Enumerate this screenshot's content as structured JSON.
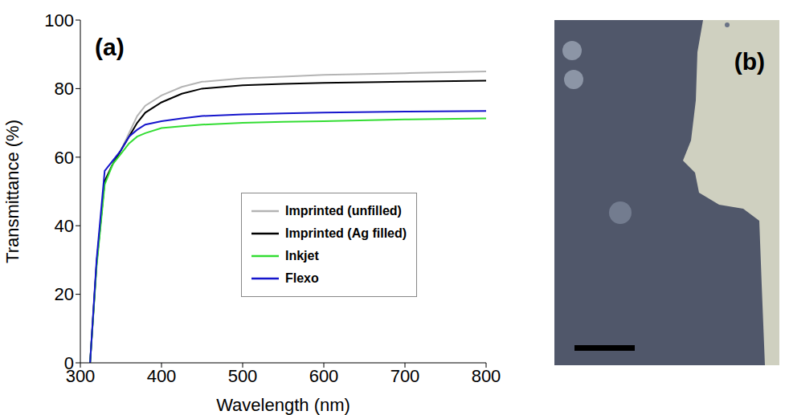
{
  "chart_data": {
    "type": "line",
    "annotations": [
      "(a)"
    ],
    "xlabel": "Wavelength (nm)",
    "ylabel": "Transmittance (%)",
    "x": [
      312,
      320,
      330,
      340,
      350,
      360,
      370,
      380,
      400,
      425,
      450,
      500,
      550,
      600,
      700,
      800
    ],
    "xlim": [
      300,
      800
    ],
    "xticks": [
      300,
      400,
      500,
      600,
      700,
      800
    ],
    "ylim": [
      0,
      100
    ],
    "yticks": [
      0,
      20,
      40,
      60,
      80,
      100
    ],
    "grid": false,
    "legend": "right",
    "series": [
      {
        "name": "Imprinted (unfilled)",
        "color": "#b4b4b4",
        "line_style": "solid",
        "values": [
          0,
          29,
          53,
          58,
          62,
          67,
          72,
          75,
          78,
          80.5,
          82,
          83,
          83.5,
          84,
          84.5,
          85
        ]
      },
      {
        "name": "Imprinted (Ag filled)",
        "color": "#000000",
        "line_style": "solid",
        "values": [
          0,
          29,
          53,
          58,
          62,
          66,
          70,
          73,
          76,
          78.5,
          80,
          81,
          81.4,
          81.7,
          82,
          82.3
        ]
      },
      {
        "name": "Inkjet",
        "color": "#33dd33",
        "line_style": "solid",
        "values": [
          0,
          28,
          52,
          58,
          61,
          64,
          66,
          67,
          68.5,
          69,
          69.5,
          70,
          70.3,
          70.5,
          71,
          71.3
        ]
      },
      {
        "name": "Flexo",
        "color": "#1515cc",
        "line_style": "solid",
        "values": [
          0,
          30,
          56,
          59,
          62,
          66,
          68,
          69.5,
          70.5,
          71.3,
          72,
          72.5,
          72.8,
          73,
          73.3,
          73.5
        ]
      }
    ]
  },
  "image": {
    "label": "(b)"
  }
}
